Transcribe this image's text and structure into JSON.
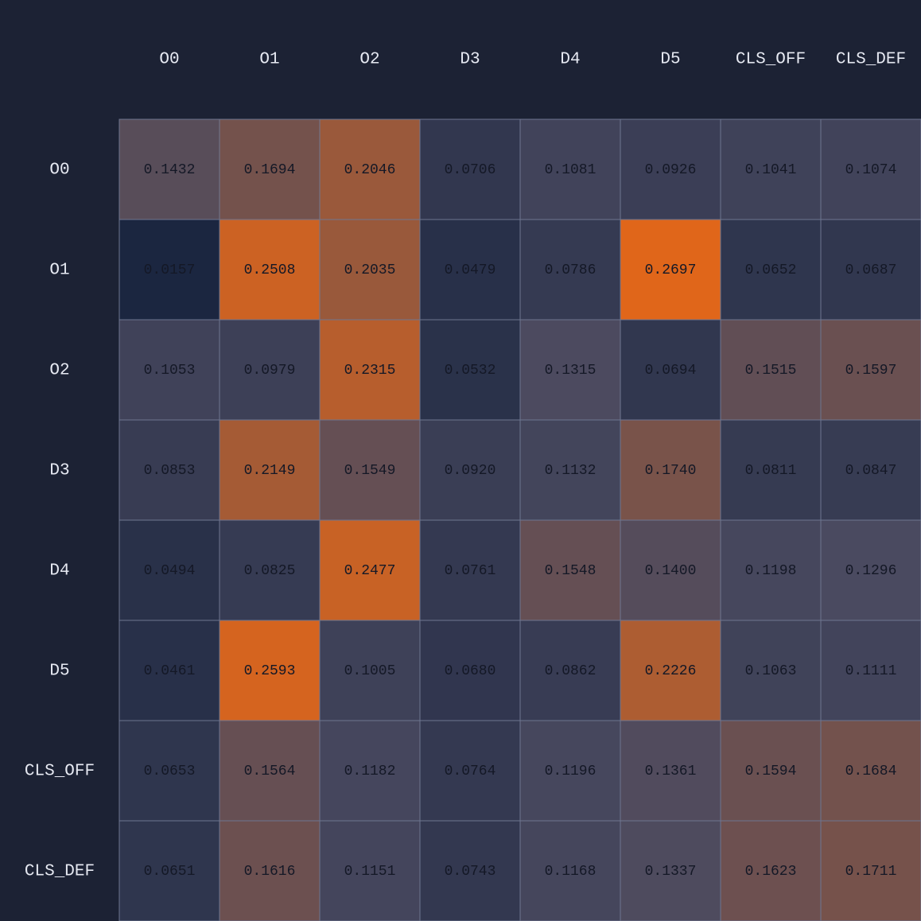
{
  "chart_data": {
    "type": "heatmap",
    "title": "",
    "columns": [
      "O0",
      "O1",
      "O2",
      "D3",
      "D4",
      "D5",
      "CLS_OFF",
      "CLS_DEF"
    ],
    "rows": [
      "O0",
      "O1",
      "O2",
      "D3",
      "D4",
      "D5",
      "CLS_OFF",
      "CLS_DEF"
    ],
    "values": [
      [
        "0.1432",
        "0.1694",
        "0.2046",
        "0.0706",
        "0.1081",
        "0.0926",
        "0.1041",
        "0.1074"
      ],
      [
        "0.0157",
        "0.2508",
        "0.2035",
        "0.0479",
        "0.0786",
        "0.2697",
        "0.0652",
        "0.0687"
      ],
      [
        "0.1053",
        "0.0979",
        "0.2315",
        "0.0532",
        "0.1315",
        "0.0694",
        "0.1515",
        "0.1597"
      ],
      [
        "0.0853",
        "0.2149",
        "0.1549",
        "0.0920",
        "0.1132",
        "0.1740",
        "0.0811",
        "0.0847"
      ],
      [
        "0.0494",
        "0.0825",
        "0.2477",
        "0.0761",
        "0.1548",
        "0.1400",
        "0.1198",
        "0.1296"
      ],
      [
        "0.0461",
        "0.2593",
        "0.1005",
        "0.0680",
        "0.0862",
        "0.2226",
        "0.1063",
        "0.1111"
      ],
      [
        "0.0653",
        "0.1564",
        "0.1182",
        "0.0764",
        "0.1196",
        "0.1361",
        "0.1594",
        "0.1684"
      ],
      [
        "0.0651",
        "0.1616",
        "0.1151",
        "0.0743",
        "0.1168",
        "0.1337",
        "0.1623",
        "0.1711"
      ]
    ],
    "colorscale": {
      "min": 0.0157,
      "max": 0.2697,
      "low_color": "#1b2640",
      "mid_color": "#4a4a60",
      "high_color": "#e0661a"
    }
  }
}
